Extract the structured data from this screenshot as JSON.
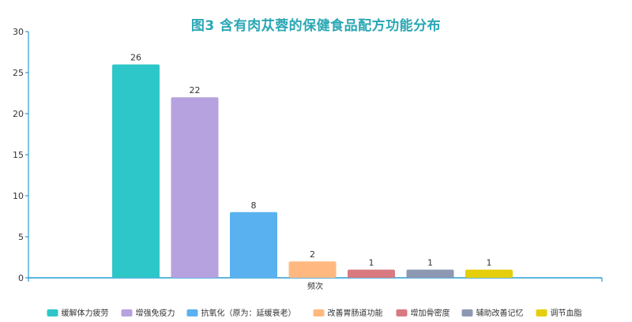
{
  "chart_data": {
    "type": "bar",
    "title": "图3  含有肉苁蓉的保健食品配方功能分布",
    "xlabel": "频次",
    "ylabel": "",
    "ylim": [
      0,
      30
    ],
    "yticks": [
      0,
      5,
      10,
      15,
      20,
      25,
      30
    ],
    "grid": false,
    "legend_position": "bottom",
    "series": [
      {
        "name": "缓解体力疲劳",
        "value": 26,
        "color": "#2ec7c9"
      },
      {
        "name": "增强免疫力",
        "value": 22,
        "color": "#b6a2de"
      },
      {
        "name": "抗氧化（原为：延缓衰老）",
        "value": 8,
        "color": "#5ab1ef"
      },
      {
        "name": "改善胃肠道功能",
        "value": 2,
        "color": "#ffb980"
      },
      {
        "name": "增加骨密度",
        "value": 1,
        "color": "#d87a80"
      },
      {
        "name": "辅助改善记忆",
        "value": 1,
        "color": "#8d98b3"
      },
      {
        "name": "调节血脂",
        "value": 1,
        "color": "#e5cf0d"
      }
    ]
  }
}
